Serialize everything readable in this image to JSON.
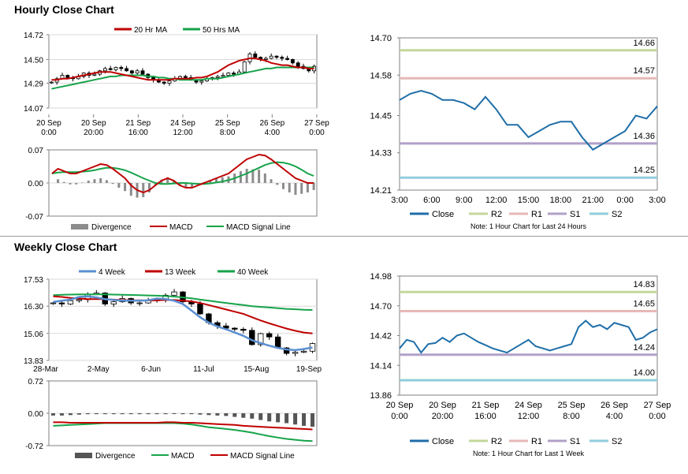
{
  "sections": {
    "hourly_title": "Hourly Close Chart",
    "weekly_title": "Weekly Close Chart"
  },
  "colors": {
    "close": "#1f6ea8",
    "ma_red": "#c00000",
    "ma_green": "#16a34a",
    "ma_blue": "#5b8fd1",
    "divergence": "#8c8c8c",
    "r2": "#c4d79b",
    "r1": "#e6b8b7",
    "s1": "#b1a0c7",
    "s2": "#92cddc",
    "grid": "#d9d9d9"
  },
  "chart_data": [
    {
      "id": "hourly_price",
      "type": "candlestick",
      "legend": [
        "20 Hr MA",
        "50 Hrs MA"
      ],
      "yticks": [
        "14.72",
        "14.50",
        "14.29",
        "14.07"
      ],
      "ylim": [
        14.07,
        14.72
      ],
      "xticks": [
        [
          "20 Sep",
          "0:00"
        ],
        [
          "20 Sep",
          "20:00"
        ],
        [
          "21 Sep",
          "16:00"
        ],
        [
          "24 Sep",
          "12:00"
        ],
        [
          "25 Sep",
          "8:00"
        ],
        [
          "26 Sep",
          "4:00"
        ],
        [
          "27 Sep",
          "0:00"
        ]
      ],
      "close": [
        14.3,
        14.33,
        14.36,
        14.34,
        14.33,
        14.35,
        14.38,
        14.36,
        14.37,
        14.4,
        14.42,
        14.41,
        14.43,
        14.42,
        14.4,
        14.38,
        14.4,
        14.37,
        14.34,
        14.32,
        14.3,
        14.29,
        14.31,
        14.33,
        14.35,
        14.34,
        14.32,
        14.3,
        14.31,
        14.33,
        14.34,
        14.35,
        14.36,
        14.38,
        14.37,
        14.39,
        14.48,
        14.55,
        14.52,
        14.5,
        14.51,
        14.53,
        14.52,
        14.51,
        14.5,
        14.47,
        14.44,
        14.42,
        14.4,
        14.44
      ],
      "ma20": [
        14.32,
        14.32,
        14.33,
        14.33,
        14.34,
        14.35,
        14.36,
        14.37,
        14.38,
        14.39,
        14.39,
        14.39,
        14.38,
        14.37,
        14.36,
        14.35,
        14.34,
        14.33,
        14.32,
        14.32,
        14.32,
        14.32,
        14.32,
        14.33,
        14.33,
        14.33,
        14.33,
        14.34,
        14.34,
        14.35,
        14.37,
        14.39,
        14.42,
        14.45,
        14.47,
        14.49,
        14.5,
        14.51,
        14.51,
        14.5,
        14.49,
        14.47,
        14.46,
        14.45,
        14.45,
        14.44,
        14.43,
        14.43,
        14.42,
        14.42
      ],
      "ma50": [
        14.24,
        14.25,
        14.26,
        14.27,
        14.28,
        14.29,
        14.3,
        14.31,
        14.32,
        14.33,
        14.34,
        14.35,
        14.35,
        14.36,
        14.36,
        14.36,
        14.36,
        14.36,
        14.35,
        14.35,
        14.34,
        14.34,
        14.33,
        14.33,
        14.32,
        14.32,
        14.32,
        14.32,
        14.32,
        14.33,
        14.33,
        14.33,
        14.34,
        14.35,
        14.36,
        14.37,
        14.38,
        14.39,
        14.4,
        14.41,
        14.42,
        14.42,
        14.43,
        14.43,
        14.43,
        14.43,
        14.43,
        14.43,
        14.43,
        14.43
      ]
    },
    {
      "id": "hourly_macd",
      "type": "macd",
      "legend": [
        "Divergence",
        "MACD",
        "MACD Signal Line"
      ],
      "yticks": [
        "0.07",
        "0.00",
        "-0.07"
      ],
      "ylim": [
        -0.07,
        0.07
      ],
      "macd": [
        0.02,
        0.03,
        0.025,
        0.02,
        0.02,
        0.025,
        0.03,
        0.035,
        0.04,
        0.038,
        0.03,
        0.02,
        0.01,
        -0.005,
        -0.015,
        -0.02,
        -0.015,
        -0.005,
        0.005,
        0.01,
        0.005,
        -0.005,
        -0.01,
        -0.01,
        -0.005,
        0.0,
        0.005,
        0.01,
        0.015,
        0.02,
        0.03,
        0.04,
        0.05,
        0.055,
        0.06,
        0.058,
        0.05,
        0.04,
        0.03,
        0.02,
        0.01,
        0.005,
        0.0,
        0.0
      ],
      "signal": [
        0.02,
        0.022,
        0.023,
        0.023,
        0.023,
        0.024,
        0.025,
        0.027,
        0.03,
        0.032,
        0.032,
        0.03,
        0.027,
        0.022,
        0.016,
        0.01,
        0.005,
        0.0,
        -0.002,
        -0.002,
        -0.001,
        0.0,
        0.0,
        -0.001,
        -0.002,
        -0.002,
        -0.001,
        0.001,
        0.003,
        0.006,
        0.01,
        0.015,
        0.02,
        0.026,
        0.032,
        0.038,
        0.042,
        0.044,
        0.043,
        0.04,
        0.035,
        0.028,
        0.02,
        0.015
      ]
    },
    {
      "id": "hourly_levels",
      "type": "line",
      "yticks": [
        "14.70",
        "14.58",
        "14.45",
        "14.33",
        "14.21"
      ],
      "ylim": [
        14.21,
        14.7
      ],
      "xticks": [
        "3:00",
        "6:00",
        "9:00",
        "12:00",
        "15:00",
        "18:00",
        "21:00",
        "0:00",
        "3:00"
      ],
      "close": [
        14.5,
        14.52,
        14.53,
        14.52,
        14.5,
        14.5,
        14.49,
        14.47,
        14.51,
        14.47,
        14.42,
        14.42,
        14.38,
        14.4,
        14.42,
        14.43,
        14.43,
        14.38,
        14.34,
        14.36,
        14.38,
        14.4,
        14.45,
        14.44,
        14.48
      ],
      "levels": [
        {
          "name": "R2",
          "value": 14.66,
          "label": "14.66"
        },
        {
          "name": "R1",
          "value": 14.57,
          "label": "14.57"
        },
        {
          "name": "S1",
          "value": 14.36,
          "label": "14.36"
        },
        {
          "name": "S2",
          "value": 14.25,
          "label": "14.25"
        }
      ],
      "legend": [
        "Close",
        "R2",
        "R1",
        "S1",
        "S2"
      ],
      "note": "Note: 1 Hour Chart for Last 24 Hours"
    },
    {
      "id": "weekly_price",
      "type": "candlestick",
      "legend": [
        "4 Week",
        "13 Week",
        "40 Week"
      ],
      "yticks": [
        "17.53",
        "16.30",
        "15.06",
        "13.83"
      ],
      "ylim": [
        13.83,
        17.53
      ],
      "xticks": [
        "28-Mar",
        "2-May",
        "6-Jun",
        "11-Jul",
        "15-Aug",
        "19-Sep"
      ],
      "close": [
        16.45,
        16.4,
        16.55,
        16.6,
        16.85,
        16.9,
        16.4,
        16.5,
        16.65,
        16.45,
        16.45,
        16.55,
        16.6,
        16.8,
        16.95,
        16.5,
        16.4,
        15.95,
        15.55,
        15.4,
        15.3,
        15.25,
        15.2,
        14.55,
        15.05,
        14.9,
        14.4,
        14.15,
        14.2,
        14.25,
        14.6
      ],
      "ma4": [
        16.5,
        16.55,
        16.6,
        16.72,
        16.75,
        16.7,
        16.62,
        16.58,
        16.55,
        16.55,
        16.55,
        16.57,
        16.65,
        16.62,
        16.55,
        16.4,
        16.1,
        15.8,
        15.55,
        15.38,
        15.25,
        15.1,
        14.95,
        14.75,
        14.62,
        14.5,
        14.4,
        14.33,
        14.3,
        14.35,
        14.42
      ],
      "ma13": [
        16.75,
        16.72,
        16.68,
        16.65,
        16.62,
        16.62,
        16.62,
        16.6,
        16.58,
        16.57,
        16.57,
        16.56,
        16.57,
        16.58,
        16.58,
        16.55,
        16.52,
        16.45,
        16.35,
        16.25,
        16.15,
        16.05,
        15.95,
        15.8,
        15.65,
        15.52,
        15.4,
        15.28,
        15.18,
        15.1,
        15.06
      ],
      "ma40": [
        16.8,
        16.82,
        16.83,
        16.84,
        16.84,
        16.84,
        16.84,
        16.83,
        16.82,
        16.81,
        16.8,
        16.79,
        16.78,
        16.76,
        16.74,
        16.7,
        16.66,
        16.6,
        16.55,
        16.5,
        16.45,
        16.4,
        16.35,
        16.3,
        16.27,
        16.24,
        16.21,
        16.18,
        16.16,
        16.14,
        16.13
      ]
    },
    {
      "id": "weekly_macd",
      "type": "macd",
      "legend": [
        "Divergence",
        "MACD",
        "MACD Signal Line"
      ],
      "yticks": [
        "0.72",
        "0.00",
        "-0.72"
      ],
      "ylim": [
        -0.72,
        0.72
      ],
      "divergence": [
        -0.05,
        -0.05,
        -0.04,
        -0.03,
        -0.02,
        -0.02,
        -0.02,
        -0.02,
        -0.02,
        -0.02,
        -0.02,
        -0.02,
        -0.02,
        -0.02,
        -0.01,
        -0.02,
        -0.02,
        -0.03,
        -0.04,
        -0.05,
        -0.06,
        -0.08,
        -0.1,
        -0.12,
        -0.15,
        -0.18,
        -0.2,
        -0.22,
        -0.25,
        -0.28,
        -0.3
      ],
      "macd": [
        -0.28,
        -0.27,
        -0.26,
        -0.25,
        -0.24,
        -0.23,
        -0.22,
        -0.22,
        -0.22,
        -0.22,
        -0.22,
        -0.22,
        -0.22,
        -0.22,
        -0.22,
        -0.23,
        -0.25,
        -0.28,
        -0.31,
        -0.33,
        -0.35,
        -0.37,
        -0.4,
        -0.43,
        -0.47,
        -0.51,
        -0.54,
        -0.57,
        -0.59,
        -0.61,
        -0.62
      ],
      "signal": [
        -0.2,
        -0.2,
        -0.21,
        -0.21,
        -0.21,
        -0.21,
        -0.21,
        -0.21,
        -0.21,
        -0.21,
        -0.21,
        -0.21,
        -0.21,
        -0.2,
        -0.2,
        -0.21,
        -0.21,
        -0.22,
        -0.23,
        -0.24,
        -0.25,
        -0.26,
        -0.28,
        -0.29,
        -0.3,
        -0.31,
        -0.32,
        -0.33,
        -0.34,
        -0.35,
        -0.36
      ]
    },
    {
      "id": "weekly_levels",
      "type": "line",
      "yticks": [
        "14.98",
        "14.70",
        "14.42",
        "14.14",
        "13.86"
      ],
      "ylim": [
        13.86,
        14.98
      ],
      "xticks": [
        [
          "20 Sep",
          "0:00"
        ],
        [
          "20 Sep",
          "20:00"
        ],
        [
          "21 Sep",
          "16:00"
        ],
        [
          "24 Sep",
          "12:00"
        ],
        [
          "25 Sep",
          "8:00"
        ],
        [
          "26 Sep",
          "4:00"
        ],
        [
          "27 Sep",
          "0:00"
        ]
      ],
      "close": [
        14.3,
        14.38,
        14.36,
        14.26,
        14.34,
        14.35,
        14.4,
        14.36,
        14.42,
        14.44,
        14.4,
        14.36,
        14.33,
        14.3,
        14.28,
        14.26,
        14.3,
        14.34,
        14.38,
        14.32,
        14.3,
        14.28,
        14.3,
        14.32,
        14.34,
        14.5,
        14.56,
        14.5,
        14.52,
        14.48,
        14.54,
        14.52,
        14.5,
        14.38,
        14.4,
        14.45,
        14.48
      ],
      "levels": [
        {
          "name": "R2",
          "value": 14.83,
          "label": "14.83"
        },
        {
          "name": "R1",
          "value": 14.65,
          "label": "14.65"
        },
        {
          "name": "S1",
          "value": 14.24,
          "label": "14.24"
        },
        {
          "name": "S2",
          "value": 14.0,
          "label": "14.00"
        }
      ],
      "legend": [
        "Close",
        "R2",
        "R1",
        "S1",
        "S2"
      ],
      "note": "Note: 1 Hour Chart for Last 1 Week"
    }
  ]
}
